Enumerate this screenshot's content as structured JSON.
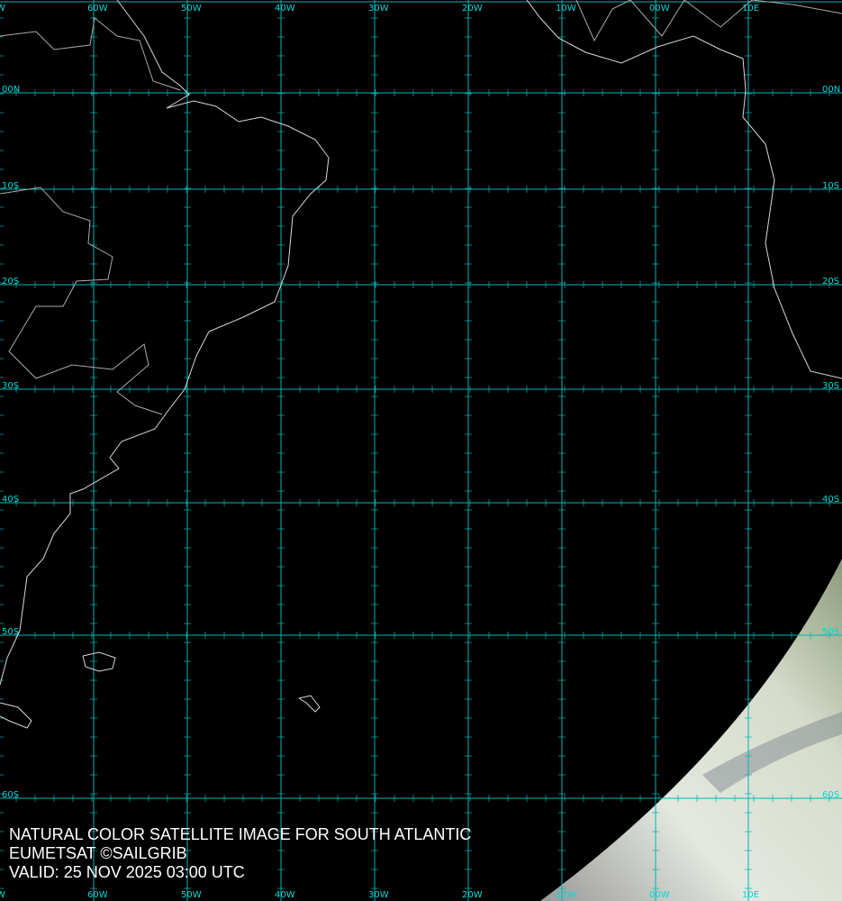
{
  "caption": {
    "line1": "NATURAL COLOR SATELLITE IMAGE FOR SOUTH ATLANTIC",
    "line2": "EUMETSAT ©SAILGRIB",
    "line3": "VALID:  25 NOV 2025 03:00 UTC"
  },
  "grid": {
    "color": "#00b4b4",
    "label_color": "#00d8d8",
    "longitude_labels": [
      "W",
      "60W",
      "50W",
      "40W",
      "30W",
      "20W",
      "10W",
      "00W",
      "10E"
    ],
    "latitude_labels": [
      "00N",
      "10S",
      "20S",
      "30S",
      "40S",
      "50S",
      "60S"
    ]
  },
  "colors": {
    "background": "#000000",
    "coastline": "#d8d8d8",
    "cloud": "#e6ece0"
  }
}
